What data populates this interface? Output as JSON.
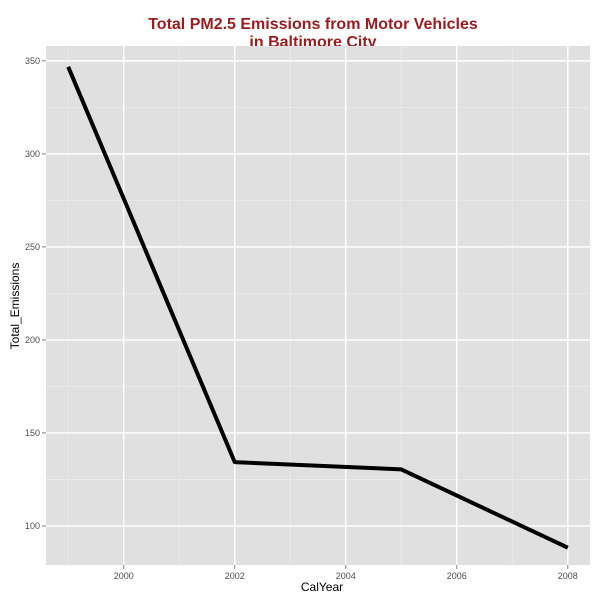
{
  "chart_data": {
    "type": "line",
    "title": "Total PM2.5 Emissions from Motor Vehicles",
    "subtitle": "in Baltimore City",
    "xlabel": "CalYear",
    "ylabel": "Total_Emissions",
    "x": [
      1999,
      2002,
      2005,
      2008
    ],
    "series": [
      {
        "values": [
          346.8,
          134.3,
          130.4,
          88.3
        ]
      }
    ],
    "xlim": [
      1998.6,
      2008.4
    ],
    "ylim": [
      79,
      358
    ],
    "x_ticks": [
      2000,
      2002,
      2004,
      2006,
      2008
    ],
    "x_tick_labels": [
      "2000",
      "2002",
      "2004",
      "2006",
      "2008"
    ],
    "y_ticks": [
      100,
      150,
      200,
      250,
      300,
      350
    ],
    "y_tick_labels": [
      "100",
      "150",
      "200",
      "250",
      "300",
      "350"
    ],
    "grid": true,
    "legend": "none"
  },
  "colors": {
    "title": "#9b1c1f",
    "panel_background": "#e0e0e0",
    "grid_major": "#ffffff",
    "grid_minor": "#ebebeb",
    "line": "#000000",
    "tick_text": "#4d4d4d"
  }
}
